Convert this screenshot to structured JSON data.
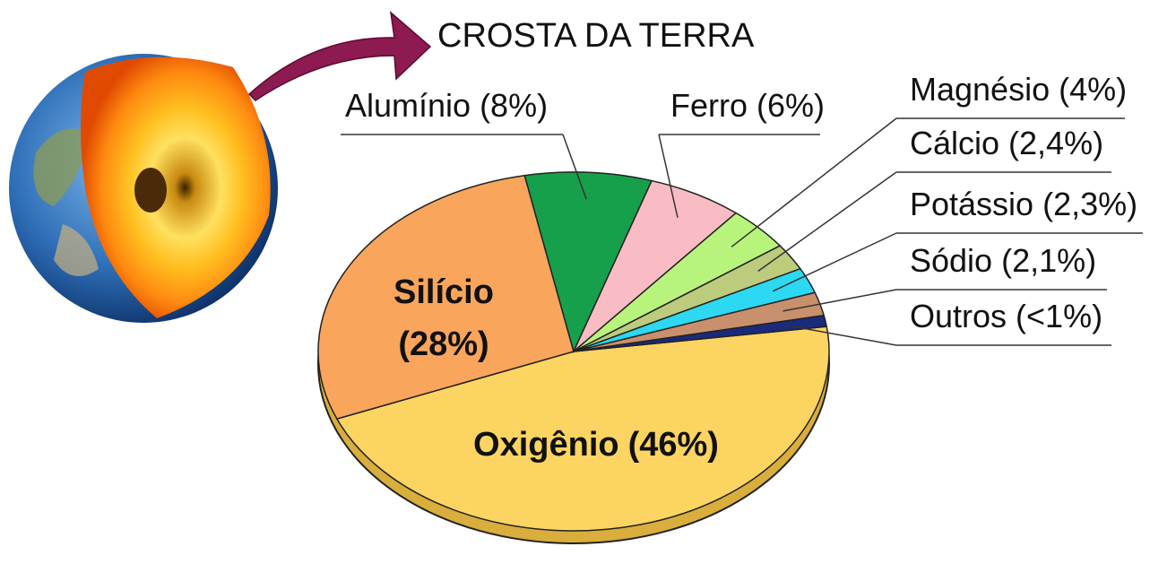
{
  "chart_data": {
    "type": "pie",
    "title": "CROSTA DA TERRA",
    "categories": [
      "Oxigênio",
      "Silício",
      "Alumínio",
      "Ferro",
      "Magnésio",
      "Cálcio",
      "Potássio",
      "Sódio",
      "Outros"
    ],
    "values": [
      46,
      28,
      8,
      6,
      4,
      2.4,
      2.3,
      2.1,
      1
    ],
    "value_labels": [
      "(46%)",
      "(28%)",
      "(8%)",
      "(6%)",
      "(4%)",
      "(2,4%)",
      "(2,3%)",
      "(2,1%)",
      "(<1%)"
    ],
    "colors": [
      "#fcd462",
      "#f9a55c",
      "#16a04c",
      "#f9bcc4",
      "#b8f47c",
      "#bccc7c",
      "#2cd8f2",
      "#c8906c",
      "#1a2a7c"
    ]
  }
}
